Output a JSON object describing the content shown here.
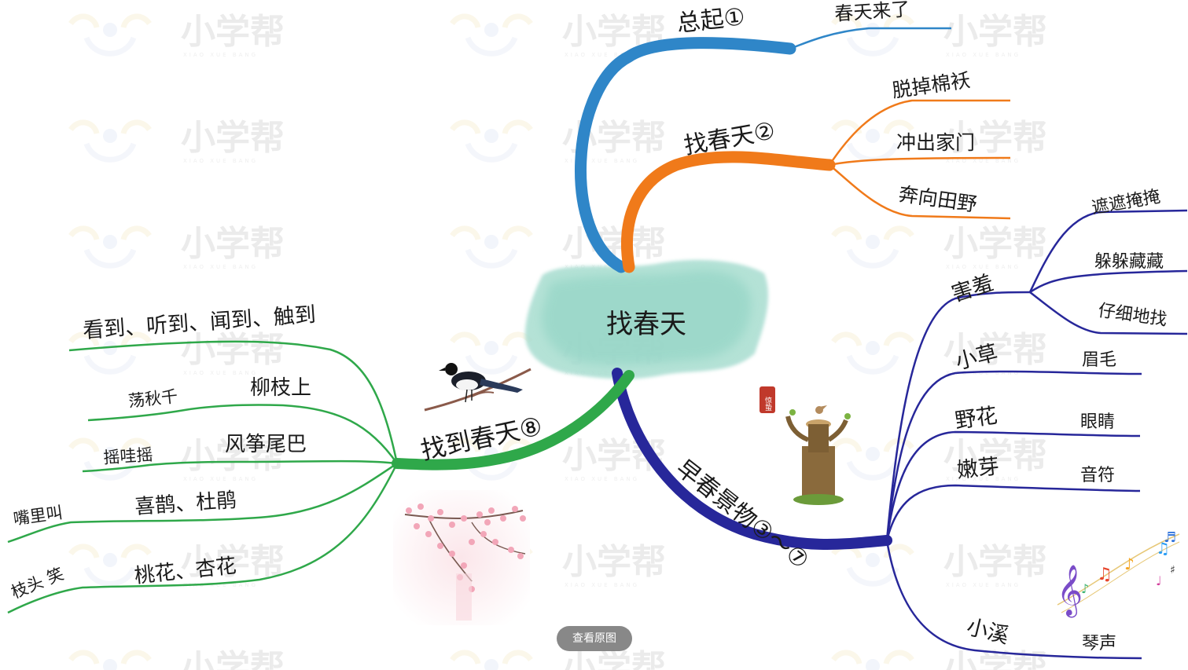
{
  "watermark": {
    "text": "小学帮",
    "subtitle": "XIAO XUE BANG"
  },
  "center": {
    "label": "找春天"
  },
  "branches": {
    "intro": {
      "label": "总起①",
      "color": "#2f86c8",
      "items": [
        "春天来了"
      ]
    },
    "search": {
      "label": "找春天②",
      "color": "#f07a1a",
      "items": [
        "脱掉棉袄",
        "冲出家门",
        "奔向田野"
      ]
    },
    "scenery": {
      "label": "早春景物③～⑦",
      "color": "#27279a",
      "groups": [
        {
          "label": "害羞",
          "items": [
            "遮遮掩掩",
            "躲躲藏藏",
            "仔细地找"
          ]
        },
        {
          "label": "小草",
          "items": [
            "眉毛"
          ]
        },
        {
          "label": "野花",
          "items": [
            "眼睛"
          ]
        },
        {
          "label": "嫩芽",
          "items": [
            "音符"
          ]
        },
        {
          "label": "小溪",
          "items": [
            "琴声"
          ]
        }
      ]
    },
    "found": {
      "label": "找到春天⑧",
      "color": "#2fa84a",
      "groups": [
        {
          "label": "看到、听到、闻到、触到",
          "items": []
        },
        {
          "label": "柳枝上",
          "items": [
            "荡秋千"
          ]
        },
        {
          "label": "风筝尾巴",
          "items": [
            "摇哇摇"
          ]
        },
        {
          "label": "喜鹊、杜鹃",
          "items": [
            "嘴里叫"
          ]
        },
        {
          "label": "桃花、杏花",
          "items": [
            "枝头 笑"
          ]
        }
      ]
    }
  },
  "seal": {
    "text": "惊蛰"
  },
  "footer": {
    "view_original_label": "查看原图"
  }
}
